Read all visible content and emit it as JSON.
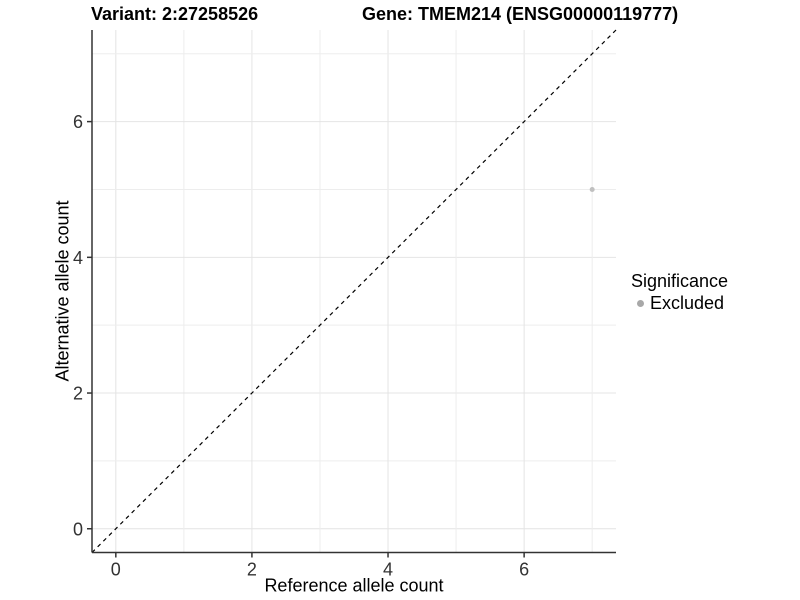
{
  "titles": {
    "variant": "Variant: 2:27258526",
    "gene": "Gene: TMEM214 (ENSG00000119777)"
  },
  "legend": {
    "title": "Significance",
    "items": [
      {
        "label": "Excluded",
        "color": "#a8a8a8"
      }
    ]
  },
  "chart_data": {
    "type": "scatter",
    "title": "Variant: 2:27258526  |  Gene: TMEM214 (ENSG00000119777)",
    "xlabel": "Reference allele count",
    "ylabel": "Alternative allele count",
    "xlim": [
      -0.35,
      7.35
    ],
    "ylim": [
      -0.35,
      7.35
    ],
    "x_ticks": [
      0,
      2,
      4,
      6
    ],
    "y_ticks": [
      0,
      2,
      4,
      6
    ],
    "gridlines_at": [
      0,
      1,
      2,
      3,
      4,
      5,
      6,
      7
    ],
    "grid": true,
    "legend_position": "right",
    "series": [
      {
        "name": "Excluded",
        "color": "#c0c0c0",
        "point_radius": 2.5,
        "points": [
          {
            "x": 7,
            "y": 5
          }
        ]
      }
    ],
    "reference_line": {
      "type": "identity",
      "slope": 1,
      "intercept": 0,
      "style": "dashed",
      "color": "#000000"
    },
    "colors": {
      "background": "#ffffff",
      "grid_major": "#e4e4e4",
      "grid_minor": "#ededed",
      "axis": "#333333",
      "tick_text": "#333333"
    }
  }
}
